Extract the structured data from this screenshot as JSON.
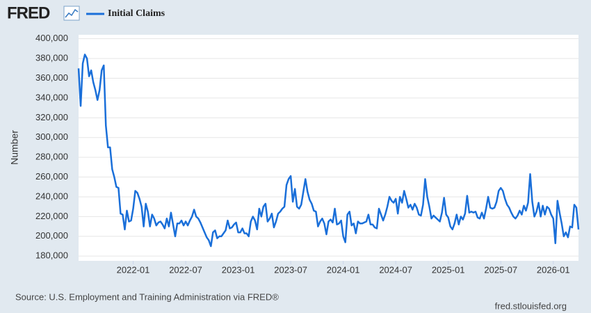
{
  "chart_data": {
    "type": "line",
    "brand": "FRED",
    "ylabel": "Number",
    "source": "Source: U.S. Employment and Training Administration via FRED®",
    "site": "fred.stlouisfed.org",
    "grid": true,
    "legend": "top-left",
    "xlim": [
      2021.48,
      2026.24
    ],
    "xticks": [
      {
        "value": 2022.0,
        "label": "2022-01"
      },
      {
        "value": 2022.5,
        "label": "2022-07"
      },
      {
        "value": 2023.0,
        "label": "2023-01"
      },
      {
        "value": 2023.5,
        "label": "2023-07"
      },
      {
        "value": 2024.0,
        "label": "2024-01"
      },
      {
        "value": 2024.5,
        "label": "2024-07"
      },
      {
        "value": 2025.0,
        "label": "2025-01"
      },
      {
        "value": 2025.5,
        "label": "2025-07"
      },
      {
        "value": 2026.0,
        "label": "2026-01"
      }
    ],
    "ylim": [
      175200,
      404000
    ],
    "yticks": [
      {
        "value": 180000,
        "label": "180,000"
      },
      {
        "value": 200000,
        "label": "200,000"
      },
      {
        "value": 220000,
        "label": "220,000"
      },
      {
        "value": 240000,
        "label": "240,000"
      },
      {
        "value": 260000,
        "label": "260,000"
      },
      {
        "value": 280000,
        "label": "280,000"
      },
      {
        "value": 300000,
        "label": "300,000"
      },
      {
        "value": 320000,
        "label": "320,000"
      },
      {
        "value": 340000,
        "label": "340,000"
      },
      {
        "value": 360000,
        "label": "360,000"
      },
      {
        "value": 380000,
        "label": "380,000"
      },
      {
        "value": 400000,
        "label": "400,000"
      }
    ],
    "x": [
      2021.48,
      2021.5,
      2021.52,
      2021.54,
      2021.56,
      2021.58,
      2021.6,
      2021.62,
      2021.64,
      2021.66,
      2021.68,
      2021.7,
      2021.72,
      2021.74,
      2021.76,
      2021.78,
      2021.8,
      2021.82,
      2021.84,
      2021.86,
      2021.88,
      2021.9,
      2021.92,
      2021.94,
      2021.96,
      2021.98,
      2022.0,
      2022.02,
      2022.04,
      2022.06,
      2022.08,
      2022.1,
      2022.12,
      2022.14,
      2022.16,
      2022.18,
      2022.2,
      2022.22,
      2022.24,
      2022.26,
      2022.28,
      2022.3,
      2022.32,
      2022.34,
      2022.36,
      2022.38,
      2022.4,
      2022.42,
      2022.44,
      2022.46,
      2022.48,
      2022.5,
      2022.52,
      2022.54,
      2022.56,
      2022.58,
      2022.6,
      2022.62,
      2022.64,
      2022.66,
      2022.68,
      2022.7,
      2022.72,
      2022.74,
      2022.76,
      2022.78,
      2022.8,
      2022.82,
      2022.84,
      2022.86,
      2022.88,
      2022.9,
      2022.92,
      2022.94,
      2022.96,
      2022.98,
      2023.0,
      2023.02,
      2023.04,
      2023.06,
      2023.08,
      2023.1,
      2023.12,
      2023.14,
      2023.16,
      2023.18,
      2023.2,
      2023.22,
      2023.24,
      2023.26,
      2023.28,
      2023.3,
      2023.32,
      2023.34,
      2023.36,
      2023.38,
      2023.4,
      2023.42,
      2023.44,
      2023.46,
      2023.48,
      2023.5,
      2023.52,
      2023.54,
      2023.56,
      2023.58,
      2023.6,
      2023.62,
      2023.64,
      2023.66,
      2023.68,
      2023.7,
      2023.72,
      2023.74,
      2023.76,
      2023.78,
      2023.8,
      2023.82,
      2023.84,
      2023.86,
      2023.88,
      2023.9,
      2023.92,
      2023.94,
      2023.96,
      2023.98,
      2024.0,
      2024.02,
      2024.04,
      2024.06,
      2024.08,
      2024.1,
      2024.12,
      2024.14,
      2024.16,
      2024.18,
      2024.2,
      2024.22,
      2024.24,
      2024.26,
      2024.28,
      2024.3,
      2024.32,
      2024.34,
      2024.36,
      2024.38,
      2024.4,
      2024.42,
      2024.44,
      2024.46,
      2024.48,
      2024.5,
      2024.52,
      2024.54,
      2024.56,
      2024.58,
      2024.6,
      2024.62,
      2024.64,
      2024.66,
      2024.68,
      2024.7,
      2024.72,
      2024.74,
      2024.76,
      2024.78,
      2024.8,
      2024.82,
      2024.84,
      2024.86,
      2024.88,
      2024.9,
      2024.92,
      2024.94,
      2024.96,
      2024.98,
      2025.0,
      2025.02,
      2025.04,
      2025.06,
      2025.08,
      2025.1,
      2025.12,
      2025.14,
      2025.16,
      2025.18,
      2025.2,
      2025.22,
      2025.24,
      2025.26,
      2025.28,
      2025.3,
      2025.32,
      2025.34,
      2025.36,
      2025.38,
      2025.4,
      2025.42,
      2025.44,
      2025.46,
      2025.48,
      2025.5,
      2025.52,
      2025.54,
      2025.56,
      2025.58,
      2025.6,
      2025.62,
      2025.64,
      2025.66,
      2025.68,
      2025.7,
      2025.72,
      2025.74,
      2025.76,
      2025.78,
      2025.8,
      2025.82,
      2025.84,
      2025.86,
      2025.88,
      2025.9,
      2025.92,
      2025.94,
      2025.96,
      2025.98,
      2026.0,
      2026.02,
      2026.04,
      2026.06,
      2026.08,
      2026.1,
      2026.12,
      2026.14,
      2026.16,
      2026.18,
      2026.2,
      2026.22,
      2026.24
    ],
    "series": [
      {
        "name": "Initial Claims",
        "color": "#1a6fd9",
        "values": [
          370000,
          332000,
          375000,
          384000,
          380000,
          362000,
          368000,
          356000,
          348000,
          338000,
          348000,
          368000,
          373000,
          312000,
          290000,
          290000,
          268000,
          260000,
          250000,
          249000,
          223000,
          222000,
          207000,
          226000,
          215000,
          216000,
          228000,
          246000,
          244000,
          238000,
          230000,
          210000,
          233000,
          225000,
          210000,
          222000,
          218000,
          211000,
          214000,
          215000,
          212000,
          208000,
          218000,
          210000,
          224000,
          212000,
          200000,
          213000,
          213000,
          216000,
          211000,
          215000,
          211000,
          216000,
          220000,
          227000,
          220000,
          218000,
          214000,
          209000,
          204000,
          199000,
          196000,
          190000,
          204000,
          206000,
          198000,
          200000,
          200000,
          203000,
          206000,
          216000,
          208000,
          209000,
          212000,
          214000,
          204000,
          204000,
          208000,
          203000,
          203000,
          200000,
          215000,
          220000,
          216000,
          207000,
          228000,
          220000,
          230000,
          233000,
          215000,
          218000,
          223000,
          209000,
          215000,
          223000,
          225000,
          228000,
          230000,
          252000,
          258000,
          261000,
          235000,
          248000,
          230000,
          228000,
          232000,
          245000,
          258000,
          245000,
          237000,
          233000,
          226000,
          225000,
          210000,
          215000,
          218000,
          213000,
          202000,
          215000,
          217000,
          214000,
          228000,
          212000,
          213000,
          216000,
          200000,
          194000,
          222000,
          225000,
          211000,
          213000,
          203000,
          215000,
          213000,
          213000,
          214000,
          215000,
          222000,
          212000,
          212000,
          209000,
          208000,
          228000,
          222000,
          216000,
          222000,
          230000,
          240000,
          236000,
          234000,
          238000,
          223000,
          240000,
          234000,
          246000,
          238000,
          229000,
          232000,
          227000,
          233000,
          229000,
          222000,
          221000,
          232000,
          258000,
          240000,
          230000,
          218000,
          221000,
          219000,
          217000,
          215000,
          224000,
          239000,
          222000,
          219000,
          210000,
          207000,
          213000,
          222000,
          212000,
          220000,
          217000,
          223000,
          241000,
          224000,
          225000,
          224000,
          225000,
          219000,
          218000,
          224000,
          218000,
          228000,
          240000,
          229000,
          228000,
          229000,
          235000,
          246000,
          249000,
          246000,
          238000,
          232000,
          229000,
          224000,
          220000,
          218000,
          221000,
          226000,
          222000,
          231000,
          226000,
          234000,
          263000,
          235000,
          220000,
          225000,
          234000,
          220000,
          231000,
          222000,
          230000,
          228000,
          222000,
          218000,
          193000,
          236000,
          224000,
          213000,
          200000,
          204000,
          199000,
          210000,
          209000,
          232000,
          229000,
          207000
        ]
      }
    ]
  }
}
